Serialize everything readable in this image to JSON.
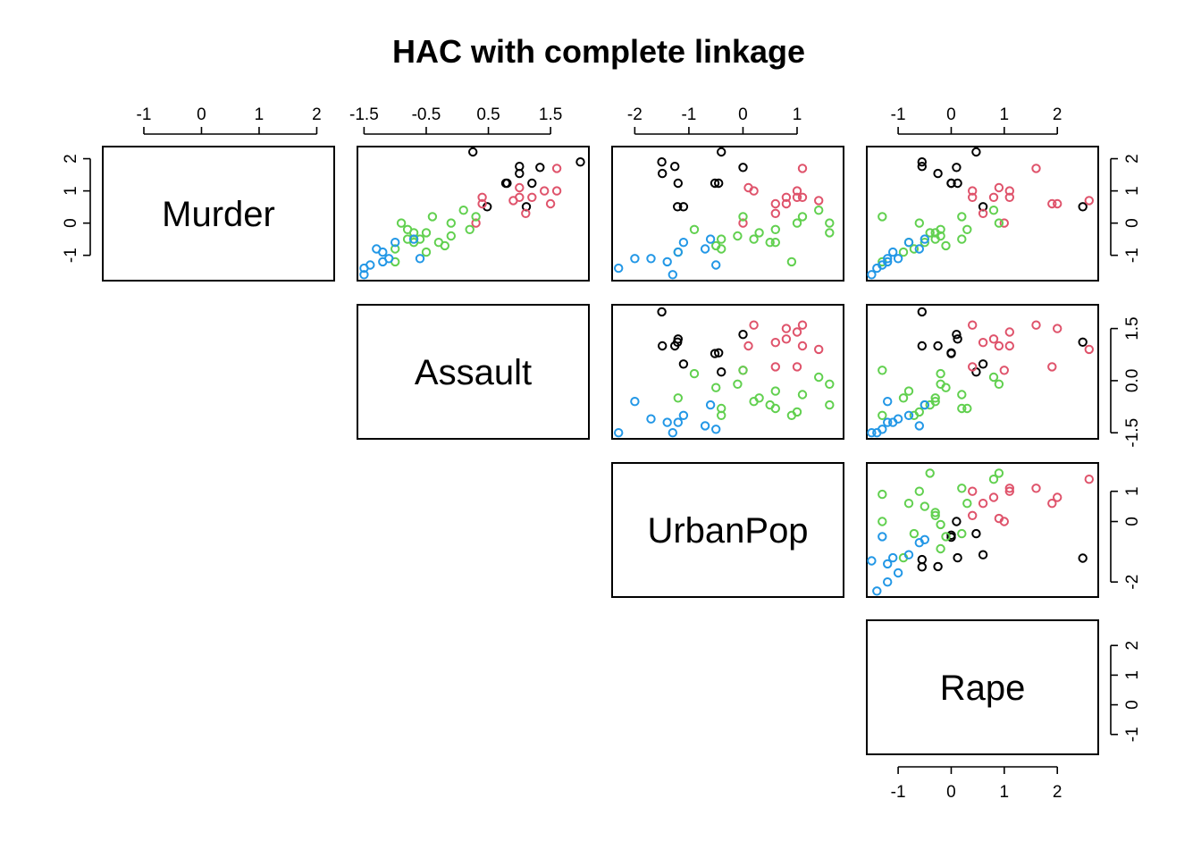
{
  "chart_data": {
    "type": "scatter",
    "title": "HAC with complete linkage",
    "variables": [
      "Murder",
      "Assault",
      "UrbanPop",
      "Rape"
    ],
    "cluster_colors": [
      "#000000",
      "#DF536B",
      "#61D04F",
      "#2297E6"
    ],
    "axis_ticks": {
      "Murder": [
        -1,
        0,
        1,
        2
      ],
      "Assault": [
        -1.5,
        -0.5,
        0.5,
        1.5
      ],
      "Assault_labeled_side": [
        -1.5,
        0.0,
        1.5
      ],
      "UrbanPop": [
        -2,
        -1,
        0,
        1
      ],
      "UrbanPop_labeled_side": [
        -2,
        0,
        1
      ],
      "Rape": [
        -1,
        0,
        1,
        2
      ]
    },
    "tick_text": {
      "Murder": [
        "-1",
        "0",
        "1",
        "2"
      ],
      "Assault_top": [
        "-1.5",
        "-0.5",
        "0.5",
        "1.5"
      ],
      "Assault_right": [
        "-1.5",
        "0.0",
        "1.5"
      ],
      "UrbanPop_top": [
        "-2",
        "-1",
        "0",
        "1"
      ],
      "UrbanPop_right": [
        "-2",
        "0",
        "1"
      ],
      "Rape": [
        "-1",
        "0",
        "1",
        "2"
      ]
    },
    "axis_ranges": {
      "Murder": [
        -1.62,
        2.21
      ],
      "Assault": [
        -1.52,
        2.03
      ],
      "UrbanPop": [
        -2.32,
        1.76
      ],
      "Rape": [
        -1.49,
        2.67
      ]
    },
    "grid": false,
    "legend": "none",
    "points": [
      {
        "cluster": 1,
        "Murder": 1.24,
        "Assault": 0.78,
        "UrbanPop": -0.52,
        "Rape": 0.0
      },
      {
        "cluster": 1,
        "Murder": 0.51,
        "Assault": 1.11,
        "UrbanPop": -1.21,
        "Rape": 2.48
      },
      {
        "cluster": 1,
        "Murder": 1.9,
        "Assault": 1.98,
        "UrbanPop": -1.5,
        "Rape": -0.55
      },
      {
        "cluster": 1,
        "Murder": 1.76,
        "Assault": 1.0,
        "UrbanPop": -1.26,
        "Rape": -0.55
      },
      {
        "cluster": 1,
        "Murder": 1.54,
        "Assault": 1.0,
        "UrbanPop": -1.49,
        "Rape": -0.25
      },
      {
        "cluster": 1,
        "Murder": 2.21,
        "Assault": 0.25,
        "UrbanPop": -0.4,
        "Rape": 0.47
      },
      {
        "cluster": 1,
        "Murder": 1.73,
        "Assault": 1.33,
        "UrbanPop": 0.0,
        "Rape": 0.1
      },
      {
        "cluster": 1,
        "Murder": 1.24,
        "Assault": 0.8,
        "UrbanPop": -0.45,
        "Rape": 0.0
      },
      {
        "cluster": 1,
        "Murder": 0.51,
        "Assault": 0.48,
        "UrbanPop": -1.1,
        "Rape": 0.6
      },
      {
        "cluster": 1,
        "Murder": 1.24,
        "Assault": 1.2,
        "UrbanPop": -1.2,
        "Rape": 0.12
      },
      {
        "cluster": 2,
        "Murder": 1.0,
        "Assault": 1.4,
        "UrbanPop": 1.0,
        "Rape": 1.1
      },
      {
        "cluster": 2,
        "Murder": 0.8,
        "Assault": 1.0,
        "UrbanPop": 1.1,
        "Rape": 1.1
      },
      {
        "cluster": 2,
        "Murder": 0.6,
        "Assault": 1.5,
        "UrbanPop": 0.8,
        "Rape": 2.0
      },
      {
        "cluster": 2,
        "Murder": 1.1,
        "Assault": 1.0,
        "UrbanPop": 0.1,
        "Rape": 0.9
      },
      {
        "cluster": 2,
        "Murder": 0.0,
        "Assault": 0.3,
        "UrbanPop": 0.0,
        "Rape": 1.0
      },
      {
        "cluster": 2,
        "Murder": 0.8,
        "Assault": 0.4,
        "UrbanPop": 1.0,
        "Rape": 0.4
      },
      {
        "cluster": 2,
        "Murder": 1.7,
        "Assault": 1.6,
        "UrbanPop": 1.1,
        "Rape": 1.6
      },
      {
        "cluster": 2,
        "Murder": 0.7,
        "Assault": 0.9,
        "UrbanPop": 1.4,
        "Rape": 2.6
      },
      {
        "cluster": 2,
        "Murder": 0.6,
        "Assault": 0.4,
        "UrbanPop": 0.6,
        "Rape": 1.9
      },
      {
        "cluster": 2,
        "Murder": 0.3,
        "Assault": 1.1,
        "UrbanPop": 0.6,
        "Rape": 0.6
      },
      {
        "cluster": 2,
        "Murder": 1.0,
        "Assault": 1.6,
        "UrbanPop": 0.2,
        "Rape": 0.4
      },
      {
        "cluster": 2,
        "Murder": 0.8,
        "Assault": 1.2,
        "UrbanPop": 0.8,
        "Rape": 0.8
      },
      {
        "cluster": 3,
        "Murder": -0.3,
        "Assault": -0.5,
        "UrbanPop": 0.3,
        "Rape": -0.3
      },
      {
        "cluster": 3,
        "Murder": 0.4,
        "Assault": 0.1,
        "UrbanPop": 1.4,
        "Rape": 0.8
      },
      {
        "cluster": 3,
        "Murder": -0.6,
        "Assault": -0.7,
        "UrbanPop": 0.5,
        "Rape": -0.5
      },
      {
        "cluster": 3,
        "Murder": 0.2,
        "Assault": -0.4,
        "UrbanPop": 1.1,
        "Rape": 0.2
      },
      {
        "cluster": 3,
        "Murder": -0.8,
        "Assault": -1.0,
        "UrbanPop": -0.4,
        "Rape": -0.7
      },
      {
        "cluster": 3,
        "Murder": -0.4,
        "Assault": -0.1,
        "UrbanPop": -0.1,
        "Rape": -0.2
      },
      {
        "cluster": 3,
        "Murder": 0.2,
        "Assault": 0.3,
        "UrbanPop": 0.0,
        "Rape": -1.3
      },
      {
        "cluster": 3,
        "Murder": -0.2,
        "Assault": -0.8,
        "UrbanPop": 0.6,
        "Rape": 0.3
      },
      {
        "cluster": 3,
        "Murder": -0.3,
        "Assault": -0.7,
        "UrbanPop": 1.6,
        "Rape": -0.4
      },
      {
        "cluster": 3,
        "Murder": -0.6,
        "Assault": -0.3,
        "UrbanPop": 0.6,
        "Rape": -0.8
      },
      {
        "cluster": 3,
        "Murder": 0.0,
        "Assault": -0.9,
        "UrbanPop": 1.0,
        "Rape": -0.6
      },
      {
        "cluster": 3,
        "Murder": -0.7,
        "Assault": -0.2,
        "UrbanPop": -0.5,
        "Rape": -0.1
      },
      {
        "cluster": 3,
        "Murder": -0.5,
        "Assault": -0.6,
        "UrbanPop": 0.2,
        "Rape": -0.3
      },
      {
        "cluster": 3,
        "Murder": -1.2,
        "Assault": -1.0,
        "UrbanPop": 0.9,
        "Rape": -1.3
      },
      {
        "cluster": 3,
        "Murder": -0.9,
        "Assault": -0.5,
        "UrbanPop": -1.2,
        "Rape": -0.9
      },
      {
        "cluster": 3,
        "Murder": -0.5,
        "Assault": -0.8,
        "UrbanPop": -0.4,
        "Rape": 0.2
      },
      {
        "cluster": 3,
        "Murder": 0.0,
        "Assault": -0.1,
        "UrbanPop": 1.6,
        "Rape": 0.9
      },
      {
        "cluster": 3,
        "Murder": -0.2,
        "Assault": 0.2,
        "UrbanPop": -0.9,
        "Rape": -0.2
      },
      {
        "cluster": 4,
        "Murder": -1.4,
        "Assault": -1.5,
        "UrbanPop": -2.3,
        "Rape": -1.4
      },
      {
        "cluster": 4,
        "Murder": -1.2,
        "Assault": -1.2,
        "UrbanPop": -1.4,
        "Rape": -1.2
      },
      {
        "cluster": 4,
        "Murder": -1.1,
        "Assault": -1.1,
        "UrbanPop": -1.7,
        "Rape": -1.0
      },
      {
        "cluster": 4,
        "Murder": -0.8,
        "Assault": -1.3,
        "UrbanPop": -0.7,
        "Rape": -0.6
      },
      {
        "cluster": 4,
        "Murder": -1.6,
        "Assault": -1.5,
        "UrbanPop": -1.3,
        "Rape": -1.5
      },
      {
        "cluster": 4,
        "Murder": -0.5,
        "Assault": -0.7,
        "UrbanPop": -0.6,
        "Rape": -0.5
      },
      {
        "cluster": 4,
        "Murder": -0.9,
        "Assault": -1.2,
        "UrbanPop": -1.2,
        "Rape": -1.1
      },
      {
        "cluster": 4,
        "Murder": -1.3,
        "Assault": -1.4,
        "UrbanPop": -0.5,
        "Rape": -1.3
      },
      {
        "cluster": 4,
        "Murder": -0.6,
        "Assault": -1.0,
        "UrbanPop": -1.1,
        "Rape": -0.8
      },
      {
        "cluster": 4,
        "Murder": -1.1,
        "Assault": -0.6,
        "UrbanPop": -2.0,
        "Rape": -1.2
      }
    ]
  }
}
